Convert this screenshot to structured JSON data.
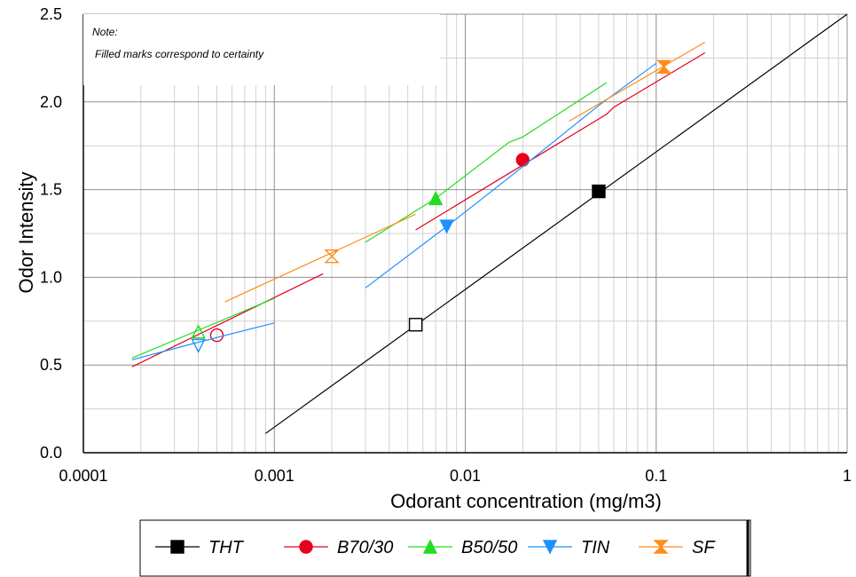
{
  "chart_data": {
    "type": "line",
    "xlabel": "Odorant concentration (mg/m3)",
    "ylabel": "Odor Intensity",
    "x_scale": "log",
    "xlim": [
      0.0001,
      1
    ],
    "ylim": [
      0,
      2.5
    ],
    "x_ticks": [
      "0.0001",
      "0.001",
      "0.01",
      "0.1",
      "1"
    ],
    "y_ticks": [
      "0.0",
      "0.5",
      "1.0",
      "1.5",
      "2.0",
      "2.5"
    ],
    "grid": true,
    "legend_position": "bottom",
    "note": {
      "title": "Note:",
      "text": "Filled marks correspond to certainty"
    },
    "series": [
      {
        "name": "THT",
        "color": "#000000",
        "marker": "square",
        "line": [
          [
            0.0009,
            0.11
          ],
          [
            1.0,
            2.5
          ]
        ],
        "points": [
          {
            "x": 0.0055,
            "y": 0.73,
            "filled": false
          },
          {
            "x": 0.05,
            "y": 1.49,
            "filled": true
          }
        ]
      },
      {
        "name": "B70/30",
        "color": "#e8001c",
        "marker": "circle",
        "line": [
          [
            0.00018,
            0.49
          ],
          [
            0.0018,
            1.02
          ]
        ],
        "line2": [
          [
            0.0055,
            1.27
          ],
          [
            0.055,
            1.93
          ],
          [
            0.06,
            1.97
          ],
          [
            0.18,
            2.28
          ]
        ],
        "points": [
          {
            "x": 0.0005,
            "y": 0.67,
            "filled": false
          },
          {
            "x": 0.02,
            "y": 1.67,
            "filled": true
          }
        ]
      },
      {
        "name": "B50/50",
        "color": "#22dd22",
        "marker": "triangle-up",
        "line": [
          [
            0.00018,
            0.54
          ],
          [
            0.001,
            0.88
          ]
        ],
        "line2": [
          [
            0.003,
            1.2
          ],
          [
            0.007,
            1.45
          ],
          [
            0.017,
            1.77
          ],
          [
            0.02,
            1.8
          ],
          [
            0.055,
            2.11
          ]
        ],
        "points": [
          {
            "x": 0.0004,
            "y": 0.69,
            "filled": false
          },
          {
            "x": 0.007,
            "y": 1.45,
            "filled": true
          }
        ]
      },
      {
        "name": "TIN",
        "color": "#1e90ff",
        "marker": "triangle-down",
        "line": [
          [
            0.00018,
            0.53
          ],
          [
            0.0004,
            0.63
          ],
          [
            0.001,
            0.74
          ]
        ],
        "line2": [
          [
            0.003,
            0.94
          ],
          [
            0.008,
            1.29
          ],
          [
            0.017,
            1.57
          ],
          [
            0.05,
            1.98
          ],
          [
            0.1,
            2.22
          ]
        ],
        "points": [
          {
            "x": 0.0004,
            "y": 0.61,
            "filled": false
          },
          {
            "x": 0.008,
            "y": 1.29,
            "filled": true
          }
        ]
      },
      {
        "name": "SF",
        "color": "#ff8c1a",
        "marker": "hourglass",
        "line": [
          [
            0.00055,
            0.86
          ],
          [
            0.0055,
            1.36
          ]
        ],
        "line2": [
          [
            0.035,
            1.89
          ],
          [
            0.18,
            2.34
          ]
        ],
        "points": [
          {
            "x": 0.002,
            "y": 1.12,
            "filled": false
          },
          {
            "x": 0.11,
            "y": 2.2,
            "filled": true
          }
        ]
      }
    ]
  }
}
